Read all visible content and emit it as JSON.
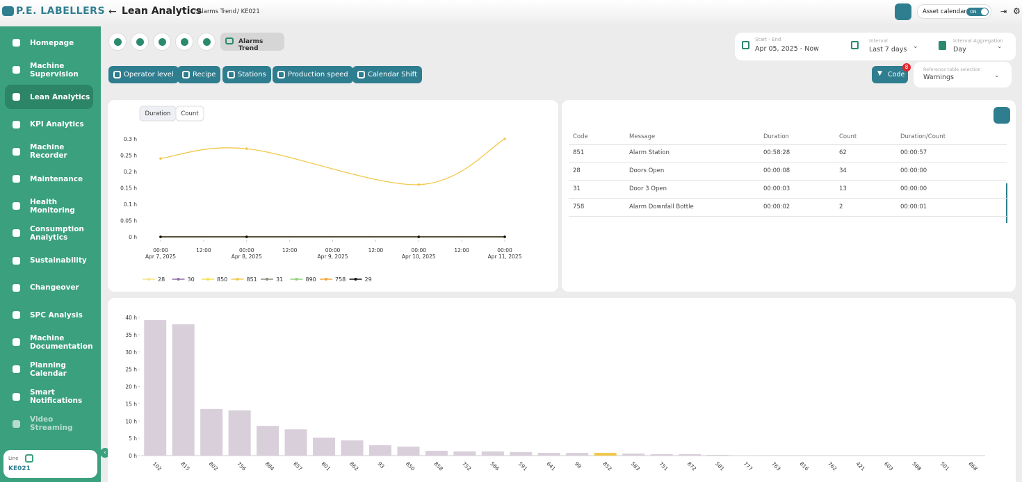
{
  "header": {
    "brand": "P.E. LABELLERS",
    "title": "Lean Analytics",
    "breadcrumbs": [
      "/ Alarms Trend",
      "/ KE021"
    ],
    "asset_calendar": "Asset calendar",
    "toggle": "ON"
  },
  "sidebar": {
    "items": [
      "Homepage",
      "Machine Supervision",
      "Lean Analytics",
      "KPI Analytics",
      "Machine Recorder",
      "Maintenance",
      "Health Monitoring",
      "Consumption Analytics",
      "Sustainability",
      "Changeover",
      "SPC Analysis",
      "Machine Documentation",
      "Planning Calendar",
      "Smart Notifications",
      "Video Streaming"
    ],
    "line_label": "Line",
    "line_value": "KE021"
  },
  "toolbar": {
    "active_tab": "Alarms Trend",
    "filters": [
      "Operator level",
      "Recipe",
      "Stations",
      "Production speed",
      "Calendar Shift"
    ],
    "code_button": "Code",
    "code_badge": "8"
  },
  "selectors": {
    "start_end_label": "Start - End",
    "start_end_value": "Apr 05, 2025 - Now",
    "interval_label": "Interval",
    "interval_value": "Last 7 days",
    "aggregation_label": "Interval Aggregation",
    "aggregation_value": "Day",
    "reference_label": "Reference table selection",
    "reference_value": "Warnings"
  },
  "table": {
    "columns": [
      "Code",
      "Message",
      "Duration",
      "Count",
      "Duration/Count"
    ],
    "rows": [
      [
        "851",
        "Alarm Station",
        "00:58:28",
        "62",
        "00:00:57"
      ],
      [
        "28",
        "Doors Open",
        "00:00:08",
        "34",
        "00:00:00"
      ],
      [
        "31",
        "Door 3 Open",
        "00:00:03",
        "13",
        "00:00:00"
      ],
      [
        "758",
        "Alarm Downfall Bottle",
        "00:00:02",
        "2",
        "00:00:01"
      ]
    ]
  },
  "chart_data": [
    {
      "type": "line",
      "toggles": [
        "Duration",
        "Count"
      ],
      "x": [
        "2025-04-07T00:00",
        "2025-04-08T00:00",
        "2025-04-10T00:00",
        "2025-04-11T00:00"
      ],
      "xlim": [
        "2025-04-07T00:00",
        "2025-04-11T00:00"
      ],
      "xticks": [
        {
          "value": "2025-04-07T00:00",
          "label": "00:00",
          "date": "Apr 7, 2025"
        },
        {
          "value": "2025-04-07T12:00",
          "label": "12:00"
        },
        {
          "value": "2025-04-08T00:00",
          "label": "00:00",
          "date": "Apr 8, 2025"
        },
        {
          "value": "2025-04-08T12:00",
          "label": "12:00"
        },
        {
          "value": "2025-04-09T00:00",
          "label": "00:00",
          "date": "Apr 9, 2025"
        },
        {
          "value": "2025-04-09T12:00",
          "label": "12:00"
        },
        {
          "value": "2025-04-10T00:00",
          "label": "00:00",
          "date": "Apr 10, 2025"
        },
        {
          "value": "2025-04-10T12:00",
          "label": "12:00"
        },
        {
          "value": "2025-04-11T00:00",
          "label": "00:00",
          "date": "Apr 11, 2025"
        }
      ],
      "ylim": [
        0,
        0.3
      ],
      "yticks": [
        {
          "value": 0,
          "label": "0 h"
        },
        {
          "value": 0.05,
          "label": "0.05 h"
        },
        {
          "value": 0.1,
          "label": "0.1 h"
        },
        {
          "value": 0.15,
          "label": "0.15 h"
        },
        {
          "value": 0.2,
          "label": "0.2 h"
        },
        {
          "value": 0.25,
          "label": "0.25 h"
        },
        {
          "value": 0.3,
          "label": "0.3 h"
        }
      ],
      "series": [
        {
          "name": "28",
          "color": "#f3e38a",
          "values": [
            0,
            0,
            0,
            0
          ]
        },
        {
          "name": "30",
          "color": "#8e6fa8",
          "values": [
            0,
            0,
            0,
            0
          ]
        },
        {
          "name": "850",
          "color": "#f4e04f",
          "values": [
            0,
            0,
            0,
            0
          ]
        },
        {
          "name": "851",
          "color": "#f2c84b",
          "values": [
            0.24,
            0.27,
            0.16,
            0.3
          ]
        },
        {
          "name": "31",
          "color": "#8b8b7b",
          "values": [
            0,
            0,
            0,
            0
          ]
        },
        {
          "name": "890",
          "color": "#8fd07a",
          "values": [
            0,
            0,
            0,
            0
          ]
        },
        {
          "name": "758",
          "color": "#f0a534",
          "values": [
            0,
            0,
            0,
            0
          ]
        },
        {
          "name": "29",
          "color": "#111111",
          "values": [
            0,
            0,
            0,
            0
          ]
        }
      ]
    },
    {
      "type": "bar",
      "categories": [
        "102",
        "815",
        "802",
        "756",
        "884",
        "857",
        "801",
        "862",
        "93",
        "850",
        "858",
        "752",
        "566",
        "591",
        "641",
        "99",
        "852",
        "583",
        "751",
        "872",
        "581",
        "777",
        "763",
        "816",
        "762",
        "421",
        "603",
        "588",
        "501",
        "868"
      ],
      "values": [
        39.2,
        38.0,
        13.5,
        13.1,
        8.6,
        7.6,
        5.2,
        4.4,
        3.0,
        2.6,
        1.4,
        1.2,
        1.2,
        1.0,
        0.8,
        0.8,
        0.8,
        0.6,
        0.4,
        0.4,
        0.2,
        0.1,
        0.05,
        0.05,
        0.05,
        0.05,
        0.05,
        0.05,
        0.05,
        0.05
      ],
      "colors": [
        "#d9cfdb",
        "#d9cfdb",
        "#d9cfdb",
        "#d9cfdb",
        "#d9cfdb",
        "#d9cfdb",
        "#d9cfdb",
        "#d9cfdb",
        "#d9cfdb",
        "#d9cfdb",
        "#d9cfdb",
        "#d9cfdb",
        "#d9cfdb",
        "#d9cfdb",
        "#d9cfdb",
        "#d9cfdb",
        "#f2c84b",
        "#d9cfdb",
        "#d9cfdb",
        "#d9cfdb",
        "#d9cfdb",
        "#d9cfdb",
        "#d9cfdb",
        "#d9cfdb",
        "#d9cfdb",
        "#d9cfdb",
        "#d9cfdb",
        "#d9cfdb",
        "#d9cfdb",
        "#d9cfdb"
      ],
      "ylim": [
        0,
        40
      ],
      "yticks": [
        {
          "value": 0,
          "label": "0 h"
        },
        {
          "value": 5,
          "label": "5 h"
        },
        {
          "value": 10,
          "label": "10 h"
        },
        {
          "value": 15,
          "label": "15 h"
        },
        {
          "value": 20,
          "label": "20 h"
        },
        {
          "value": 25,
          "label": "25 h"
        },
        {
          "value": 30,
          "label": "30 h"
        },
        {
          "value": 35,
          "label": "35 h"
        },
        {
          "value": 40,
          "label": "40 h"
        }
      ]
    }
  ]
}
